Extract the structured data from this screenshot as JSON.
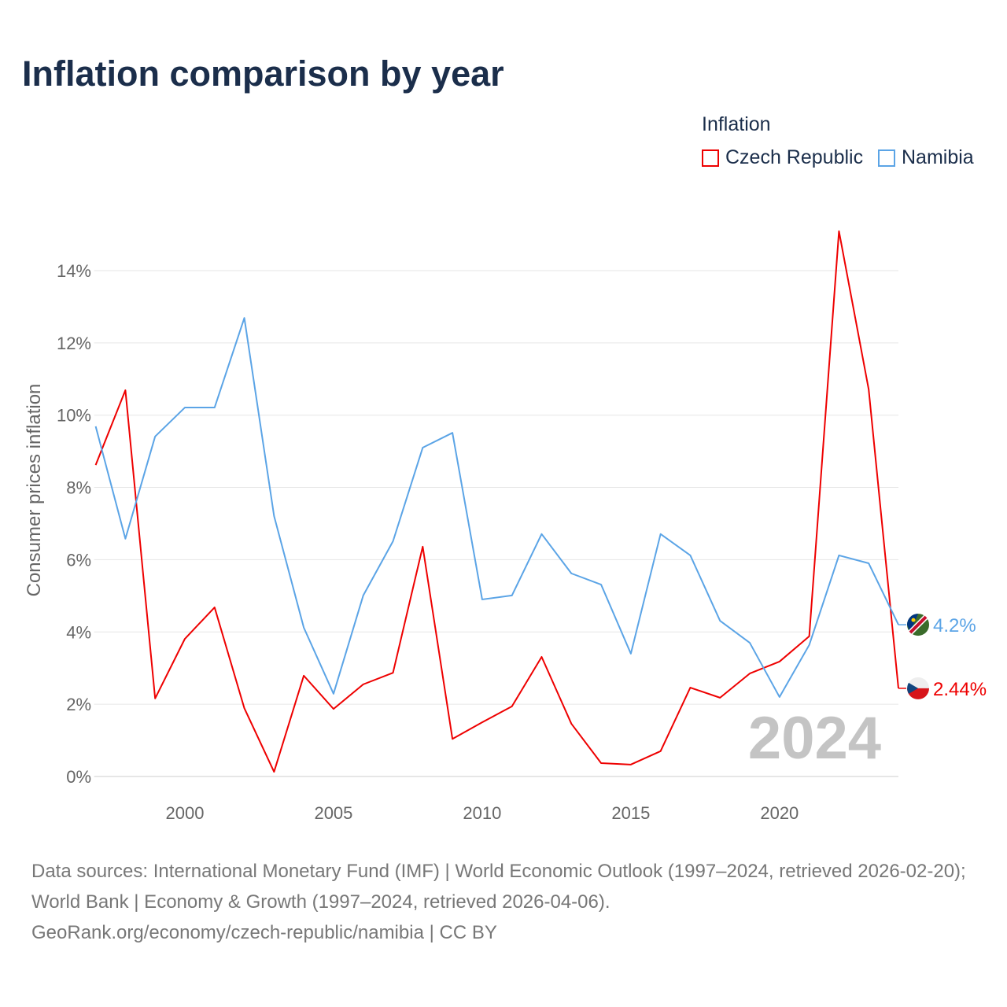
{
  "chart_data": {
    "type": "line",
    "title": "Inflation comparison by year",
    "ylabel": "Consumer prices inflation",
    "xlabel": "",
    "ylim": [
      0,
      15.1
    ],
    "xlim": [
      1997,
      2024
    ],
    "y_ticks": [
      0,
      2,
      4,
      6,
      8,
      10,
      12,
      14
    ],
    "y_tick_labels": [
      "0%",
      "2%",
      "4%",
      "6%",
      "8%",
      "10%",
      "12%",
      "14%"
    ],
    "x_ticks": [
      2000,
      2005,
      2010,
      2015,
      2020
    ],
    "x_tick_labels": [
      "2000",
      "2005",
      "2010",
      "2015",
      "2020"
    ],
    "grid": true,
    "legend_title": "Inflation",
    "legend_placement": "top-right",
    "year_watermark": "2024",
    "x": [
      1997,
      1998,
      1999,
      2000,
      2001,
      2002,
      2003,
      2004,
      2005,
      2006,
      2007,
      2008,
      2009,
      2010,
      2011,
      2012,
      2013,
      2014,
      2015,
      2016,
      2017,
      2018,
      2019,
      2020,
      2021,
      2022,
      2023,
      2024
    ],
    "series": [
      {
        "name": "Czech Republic",
        "color": "#ee0000",
        "end_label": "2.44%",
        "values": [
          8.62,
          10.69,
          2.16,
          3.81,
          4.68,
          1.89,
          0.13,
          2.79,
          1.87,
          2.55,
          2.87,
          6.36,
          1.04,
          1.5,
          1.94,
          3.31,
          1.46,
          0.37,
          0.33,
          0.7,
          2.46,
          2.18,
          2.85,
          3.18,
          3.88,
          15.09,
          10.71,
          2.44
        ]
      },
      {
        "name": "Namibia",
        "color": "#5ba4e6",
        "end_label": "4.2%",
        "values": [
          9.69,
          6.58,
          9.41,
          10.21,
          10.21,
          12.69,
          7.21,
          4.12,
          2.29,
          5.01,
          6.51,
          9.1,
          9.51,
          4.9,
          5.01,
          6.71,
          5.62,
          5.31,
          3.4,
          6.71,
          6.12,
          4.31,
          3.7,
          2.2,
          3.64,
          6.12,
          5.9,
          4.2
        ]
      }
    ]
  },
  "source_lines": [
    "Data sources: International Monetary Fund (IMF) | World Economic Outlook (1997–2024, retrieved 2026-02-20); World Bank | Economy & Growth (1997–2024, retrieved 2026-04-06).",
    "GeoRank.org/economy/czech-republic/namibia | CC BY"
  ]
}
